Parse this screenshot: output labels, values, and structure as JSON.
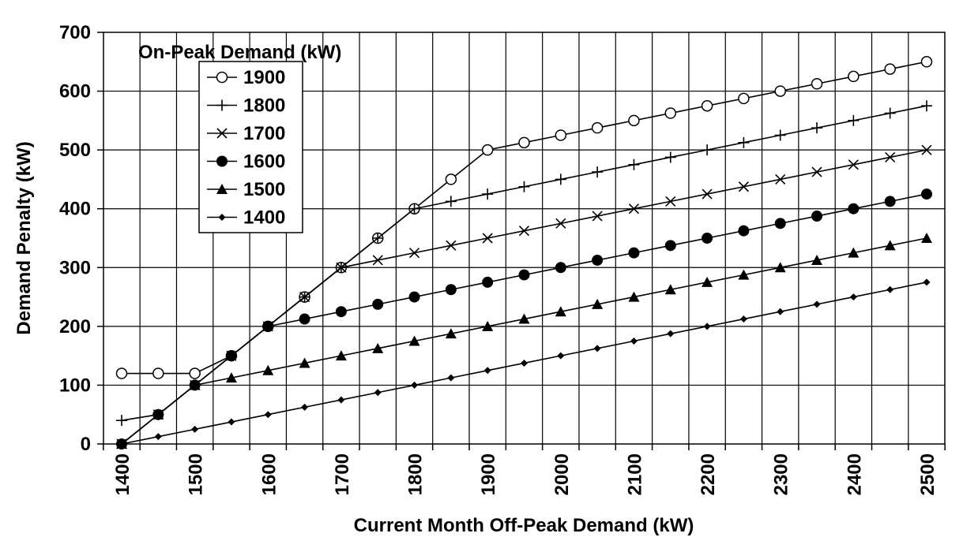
{
  "chart_data": {
    "type": "line",
    "title": "",
    "xlabel": "Current Month Off-Peak Demand (kW)",
    "ylabel": "Demand Penalty (kW)",
    "xlim": [
      1400,
      2500
    ],
    "ylim": [
      0,
      700
    ],
    "x_ticks": [
      1400,
      1500,
      1600,
      1700,
      1800,
      1900,
      2000,
      2100,
      2200,
      2300,
      2400,
      2500
    ],
    "y_ticks": [
      0,
      100,
      200,
      300,
      400,
      500,
      600,
      700
    ],
    "grid": true,
    "legend": {
      "title": "On-Peak Demand (kW)",
      "placement": "top-left"
    },
    "x": [
      1400,
      1450,
      1500,
      1550,
      1600,
      1650,
      1700,
      1750,
      1800,
      1850,
      1900,
      1950,
      2000,
      2050,
      2100,
      2150,
      2200,
      2250,
      2300,
      2350,
      2400,
      2450,
      2500
    ],
    "series": [
      {
        "name": "1900",
        "marker": "open-circle",
        "values": [
          120,
          120,
          120,
          150,
          200,
          250,
          300,
          350,
          400,
          450,
          500,
          512.5,
          525,
          537.5,
          550,
          562.5,
          575,
          587.5,
          600,
          612.5,
          625,
          637.5,
          650
        ]
      },
      {
        "name": "1800",
        "marker": "plus",
        "values": [
          40,
          50,
          100,
          150,
          200,
          250,
          300,
          350,
          400,
          412.5,
          425,
          437.5,
          450,
          462.5,
          475,
          487.5,
          500,
          512.5,
          525,
          537.5,
          550,
          562.5,
          575
        ]
      },
      {
        "name": "1700",
        "marker": "x",
        "values": [
          0,
          50,
          100,
          150,
          200,
          250,
          300,
          312.5,
          325,
          337.5,
          350,
          362.5,
          375,
          387.5,
          400,
          412.5,
          425,
          437.5,
          450,
          462.5,
          475,
          487.5,
          500
        ]
      },
      {
        "name": "1600",
        "marker": "filled-circle",
        "values": [
          0,
          50,
          100,
          150,
          200,
          212.5,
          225,
          237.5,
          250,
          262.5,
          275,
          287.5,
          300,
          312.5,
          325,
          337.5,
          350,
          362.5,
          375,
          387.5,
          400,
          412.5,
          425
        ]
      },
      {
        "name": "1500",
        "marker": "triangle",
        "values": [
          0,
          50,
          100,
          112.5,
          125,
          137.5,
          150,
          162.5,
          175,
          187.5,
          200,
          212.5,
          225,
          237.5,
          250,
          262.5,
          275,
          287.5,
          300,
          312.5,
          325,
          337.5,
          350
        ]
      },
      {
        "name": "1400",
        "marker": "diamond",
        "values": [
          0,
          12.5,
          25,
          37.5,
          50,
          62.5,
          75,
          87.5,
          100,
          112.5,
          125,
          137.5,
          150,
          162.5,
          175,
          187.5,
          200,
          212.5,
          225,
          237.5,
          250,
          262.5,
          275
        ]
      }
    ]
  }
}
